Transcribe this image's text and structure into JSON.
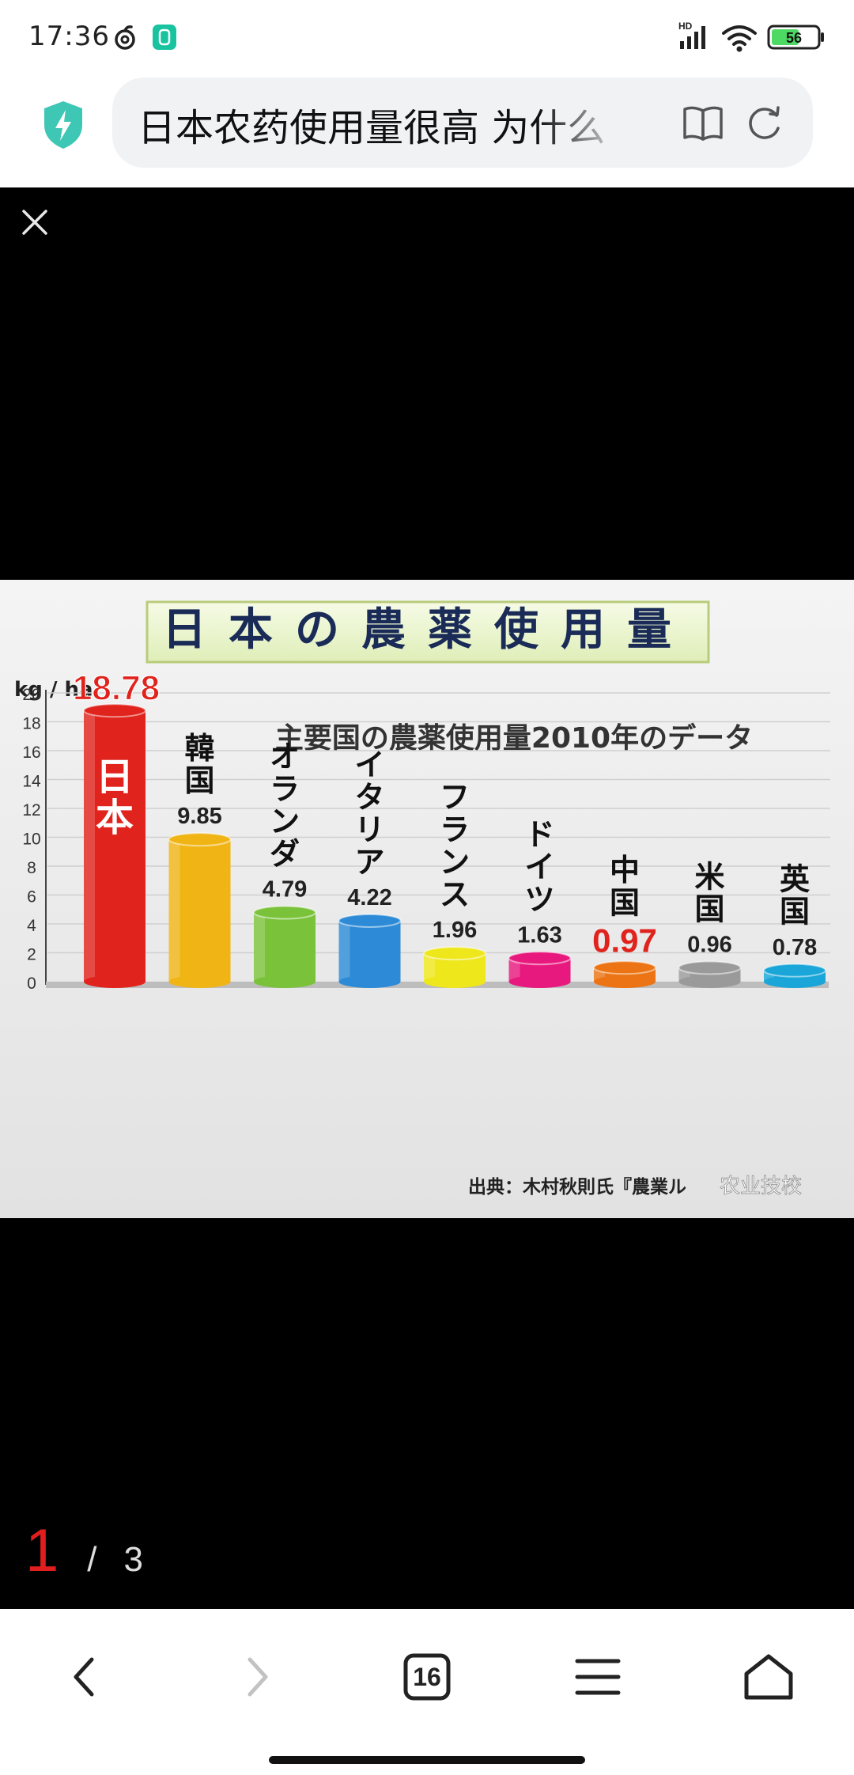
{
  "status_bar": {
    "time": "17:36",
    "icons": [
      "netease-music-icon",
      "app-notification-icon",
      "hd-signal-icon",
      "wifi-icon",
      "battery-icon"
    ],
    "hd_label": "HD",
    "battery_level": "56",
    "battery_color": "#4cd964"
  },
  "address_bar": {
    "shield_icon": "shield-bolt-icon",
    "shield_color": "#3ec7b4",
    "title": "日本农药使用量很高 为什么",
    "reader_icon": "book-icon",
    "refresh_icon": "refresh-icon"
  },
  "viewer": {
    "close_icon": "close-icon",
    "pager": {
      "current": "1",
      "separator": "/",
      "total": "3"
    }
  },
  "chart_data": {
    "type": "bar",
    "title": "日本の農薬使用量",
    "subtitle": "主要国の農薬使用量2010年のデータ",
    "ylabel": "kg / ha",
    "ylim": [
      0,
      20
    ],
    "yticks": [
      0,
      2,
      4,
      6,
      8,
      10,
      12,
      14,
      16,
      18,
      20
    ],
    "grid": true,
    "categories": [
      "日本",
      "韓国",
      "オランダ",
      "イタリア",
      "フランス",
      "ドイツ",
      "中国",
      "米国",
      "英国"
    ],
    "values": [
      18.78,
      9.85,
      4.79,
      4.22,
      1.96,
      1.63,
      0.97,
      0.96,
      0.78
    ],
    "value_labels": [
      "18.78",
      "9.85",
      "4.79",
      "4.22",
      "1.96",
      "1.63",
      "0.97",
      "0.96",
      "0.78"
    ],
    "colors": [
      "#e0231c",
      "#f0b415",
      "#7ac23a",
      "#2d8ad6",
      "#eee71c",
      "#e8197e",
      "#ec7414",
      "#9a9a9a",
      "#1aa6d8"
    ],
    "highlighted": [
      "日本",
      "中国"
    ],
    "source": "出典：木村秋則氏『農業ル",
    "watermark": "农业技校"
  },
  "toolbar": {
    "back_icon": "chevron-left-icon",
    "forward_icon": "chevron-right-icon",
    "tabs_icon": "tabs-icon",
    "tab_count": "16",
    "menu_icon": "menu-icon",
    "home_icon": "home-icon"
  }
}
